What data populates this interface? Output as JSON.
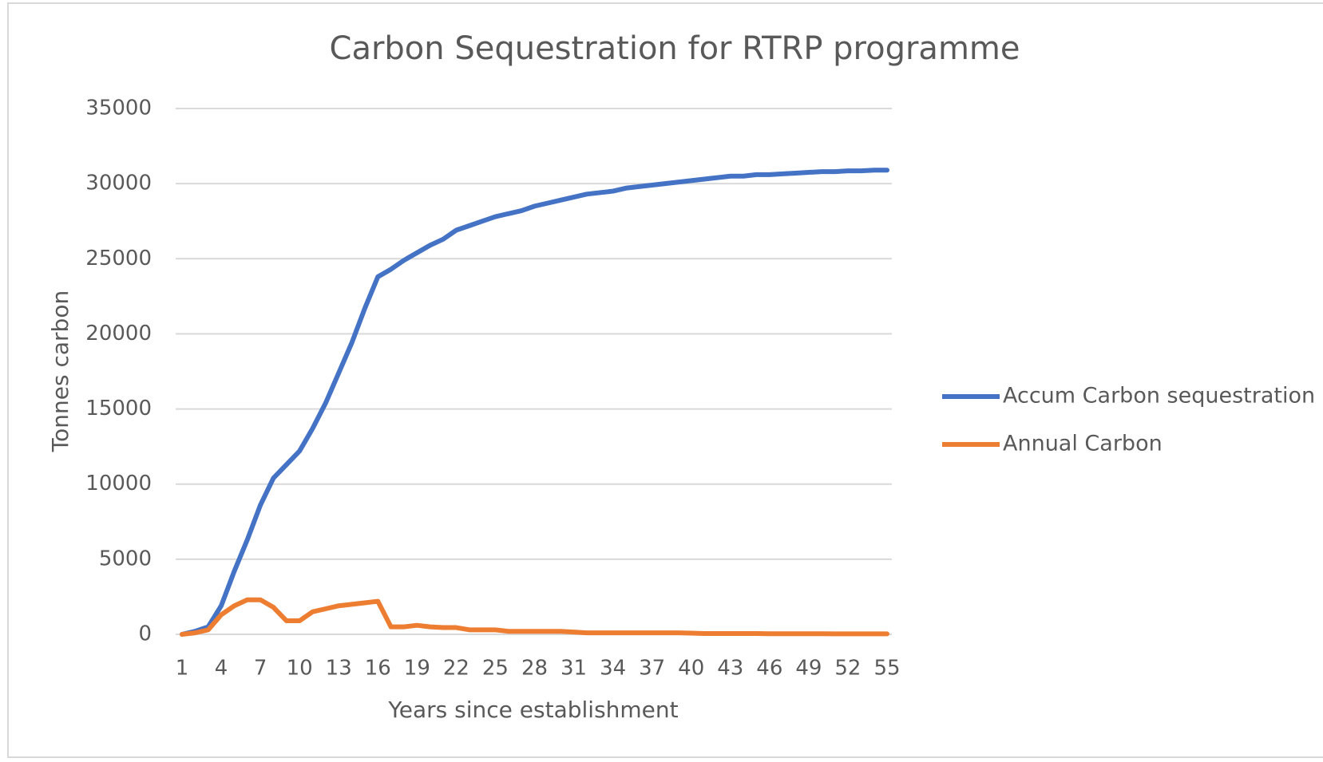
{
  "chart_data": {
    "type": "line",
    "title": "Carbon Sequestration for RTRP programme",
    "x_label": "Years since establishment",
    "y_label": "Tonnes carbon",
    "categories": [
      1,
      null,
      null,
      4,
      null,
      null,
      7,
      null,
      null,
      10,
      null,
      null,
      13,
      null,
      null,
      16,
      null,
      null,
      19,
      null,
      null,
      22,
      null,
      null,
      25,
      null,
      null,
      28,
      null,
      null,
      31,
      null,
      null,
      34,
      null,
      null,
      37,
      null,
      null,
      40,
      null,
      null,
      43,
      null,
      null,
      46,
      null,
      null,
      49,
      null,
      null,
      52,
      null,
      null,
      55
    ],
    "series": [
      {
        "name": "Accum Carbon sequestration",
        "color": "#4472c4",
        "values": [
          0,
          200,
          500,
          1900,
          4200,
          6300,
          8600,
          10400,
          11300,
          12200,
          13700,
          15400,
          17400,
          19400,
          21700,
          23800,
          24300,
          24900,
          25400,
          25900,
          26300,
          26900,
          27200,
          27500,
          27800,
          28000,
          28200,
          28500,
          28700,
          28900,
          29100,
          29300,
          29400,
          29500,
          29700,
          29800,
          29900,
          30000,
          30100,
          30200,
          30300,
          30400,
          30500,
          30500,
          30600,
          30600,
          30650,
          30700,
          30750,
          30800,
          30800,
          30850,
          30850,
          30900,
          30900
        ]
      },
      {
        "name": "Annual Carbon",
        "color": "#ed7d31",
        "values": [
          0,
          100,
          300,
          1300,
          1900,
          2300,
          2300,
          1800,
          900,
          900,
          1500,
          1700,
          1900,
          2000,
          2100,
          2200,
          500,
          500,
          600,
          500,
          450,
          450,
          300,
          300,
          300,
          200,
          200,
          200,
          200,
          200,
          150,
          100,
          100,
          100,
          100,
          100,
          100,
          100,
          100,
          80,
          50,
          50,
          50,
          50,
          50,
          40,
          40,
          40,
          40,
          40,
          30,
          30,
          30,
          30,
          30
        ]
      }
    ],
    "ylim": [
      0,
      35000
    ],
    "yticks": [
      0,
      5000,
      10000,
      15000,
      20000,
      25000,
      30000,
      35000
    ],
    "grid": true,
    "legend": "right"
  }
}
